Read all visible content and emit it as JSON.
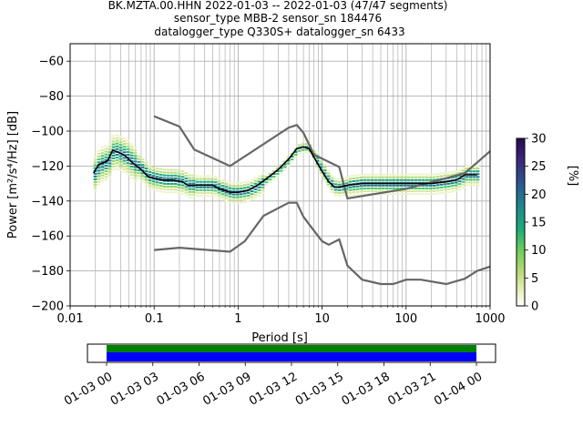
{
  "chart_data": [
    {
      "type": "heatmap",
      "title_lines": [
        "BK.MZTA.00.HHN   2022-01-03 -- 2022-01-03  (47/47 segments)",
        "sensor_type MBB-2 sensor_sn 184476",
        "datalogger_type Q330S+ datalogger_sn 6433"
      ],
      "xlabel": "Period [s]",
      "ylabel": "Power [m²/s⁴/Hz] [dB]",
      "xscale": "log",
      "xlim": [
        0.01,
        1000
      ],
      "ylim": [
        -200,
        -50
      ],
      "xtick_values": [
        0.01,
        0.1,
        1,
        10,
        100,
        1000
      ],
      "xtick_labels": [
        "0.01",
        "0.1",
        "1",
        "10",
        "100",
        "1000"
      ],
      "ytick_values": [
        -200,
        -180,
        -160,
        -140,
        -120,
        -100,
        -80,
        -60
      ],
      "grid": true,
      "mode_curve": {
        "x": [
          0.019,
          0.022,
          0.025,
          0.028,
          0.032,
          0.037,
          0.045,
          0.055,
          0.07,
          0.085,
          0.1,
          0.13,
          0.17,
          0.22,
          0.25,
          0.3,
          0.4,
          0.5,
          0.6,
          0.7,
          0.8,
          1.0,
          1.3,
          1.7,
          2.2,
          3.0,
          4.0,
          5.0,
          6.0,
          7.0,
          8.0,
          10,
          12,
          14,
          16,
          20,
          30,
          50,
          80,
          100,
          150,
          200,
          300,
          400,
          500,
          600,
          700
        ],
        "y": [
          -124,
          -119,
          -118,
          -117,
          -111,
          -112,
          -114,
          -118,
          -122,
          -126,
          -127,
          -128,
          -128,
          -129,
          -131,
          -131,
          -131,
          -131,
          -133,
          -134,
          -135,
          -135,
          -134,
          -131,
          -127,
          -122,
          -116,
          -110,
          -109,
          -110,
          -115,
          -123,
          -129,
          -132,
          -132,
          -131,
          -130,
          -130,
          -130,
          -130,
          -130,
          -130,
          -129,
          -128,
          -125,
          -125,
          -125
        ]
      },
      "noise_models": [
        {
          "x": [
            0.1,
            0.2,
            0.3,
            0.8,
            4.0,
            5.0,
            6.0,
            8.0,
            16,
            20,
            100,
            300,
            500,
            700,
            1000
          ],
          "y": [
            -91.5,
            -97.4,
            -110.5,
            -120.0,
            -98.0,
            -96.5,
            -101.0,
            -113.5,
            -120.5,
            -138.5,
            -133.0,
            -127.0,
            -124.0,
            -118.0,
            -111.5
          ]
        },
        {
          "x": [
            0.1,
            0.2,
            0.8,
            1.2,
            2.0,
            4.0,
            5.0,
            6.0,
            8.0,
            10,
            12,
            16,
            20,
            30,
            50,
            70,
            100,
            150,
            300,
            500,
            700,
            1000
          ],
          "y": [
            -168.0,
            -166.7,
            -169.0,
            -163.0,
            -148.5,
            -141.0,
            -141.0,
            -149.0,
            -157.0,
            -163.0,
            -165.0,
            -162.0,
            -177.0,
            -185.0,
            -187.5,
            -187.5,
            -185.0,
            -185.0,
            -187.5,
            -184.5,
            -180.0,
            -177.5
          ]
        }
      ],
      "colorbar": {
        "label": "[%]",
        "min": 0,
        "max": 30,
        "tick_values": [
          0,
          5,
          10,
          15,
          20,
          25,
          30
        ]
      }
    },
    {
      "type": "bar",
      "description_role": "data coverage timeline",
      "xtick_labels": [
        "01-03 00",
        "01-03 03",
        "01-03 06",
        "01-03 09",
        "01-03 12",
        "01-03 15",
        "01-03 18",
        "01-03 21",
        "01-04 00"
      ],
      "coverage_start_hours": 0,
      "coverage_end_hours": 24,
      "coverage_colors": [
        "#008000",
        "#0000ff"
      ]
    }
  ]
}
